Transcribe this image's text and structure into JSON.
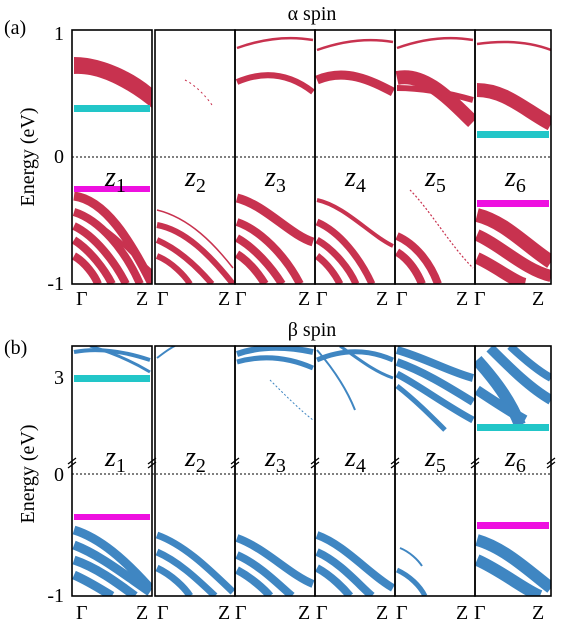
{
  "chart_data": [
    {
      "type": "line",
      "tag": "(a)",
      "title": "α spin",
      "ylabel": "Energy (eV)",
      "ylim": [
        -1,
        1
      ],
      "yticks": [
        "1",
        "0",
        "-1"
      ],
      "k_labels": [
        "Γ",
        "Z"
      ],
      "subpanels": [
        "z1",
        "z2",
        "z3",
        "z4",
        "z5",
        "z6"
      ],
      "band_color": "#c8324f",
      "highlight_colors": {
        "cyan": "#22c6c8",
        "magenta": "#ee10e0"
      },
      "levels": [
        {
          "panel": "z1",
          "cyan": 0.36,
          "magenta": -0.26
        },
        {
          "panel": "z6",
          "cyan": 0.17,
          "magenta": -0.38
        }
      ]
    },
    {
      "type": "line",
      "tag": "(b)",
      "title": "β spin",
      "ylabel": "Energy (eV)",
      "ylim": [
        -1,
        4
      ],
      "yticks": [
        "3",
        "0",
        "-1"
      ],
      "axis_break": true,
      "k_labels": [
        "Γ",
        "Z"
      ],
      "subpanels": [
        "z1",
        "z2",
        "z3",
        "z4",
        "z5",
        "z6"
      ],
      "band_color": "#3f86c2",
      "highlight_colors": {
        "cyan": "#22c6c8",
        "magenta": "#ee10e0"
      },
      "levels": [
        {
          "panel": "z1",
          "cyan": 3.1,
          "magenta": -0.35
        },
        {
          "panel": "z6",
          "cyan": 1.9,
          "magenta": -0.45
        }
      ]
    }
  ]
}
